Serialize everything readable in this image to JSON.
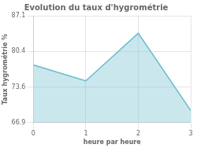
{
  "chart_data": {
    "type": "area",
    "title": "Evolution du taux d'hygrométrie",
    "x_label": "heure par heure",
    "y_label": "Taux hygrométrie %",
    "x": [
      0,
      1,
      2,
      3
    ],
    "values": [
      77.8,
      74.8,
      83.8,
      69.2
    ],
    "color": "#66bbcc",
    "xlim": [
      0,
      3
    ],
    "xticks": [
      0,
      1,
      2,
      3
    ],
    "ylim": [
      66.9,
      87.1
    ],
    "yticks": [
      66.9,
      73.6,
      80.4,
      87.1
    ],
    "grid": true
  }
}
